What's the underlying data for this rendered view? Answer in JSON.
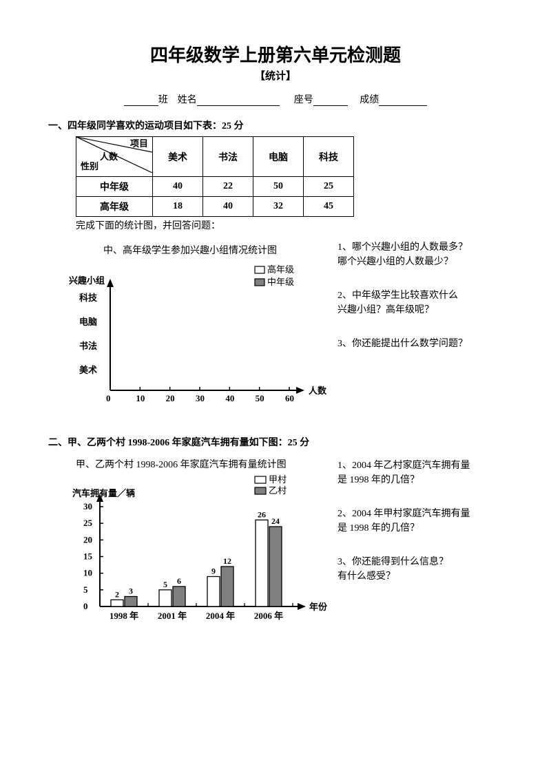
{
  "header": {
    "title": "四年级数学上册第六单元检测题",
    "subtitle": "【统计】",
    "class_label": "班",
    "name_label": "姓名",
    "seat_label": "座号",
    "score_label": "成绩"
  },
  "section1": {
    "heading": "一、四年级同学喜欢的运动项目如下表：25 分",
    "table": {
      "diag_top": "项目",
      "diag_mid": "人数",
      "diag_bottom": "性别",
      "columns": [
        "美术",
        "书法",
        "电脑",
        "科技"
      ],
      "rows": [
        {
          "label": "中年级",
          "values": [
            "40",
            "22",
            "50",
            "25"
          ]
        },
        {
          "label": "高年级",
          "values": [
            "18",
            "40",
            "32",
            "45"
          ]
        }
      ]
    },
    "under_table": "完成下面的统计图，并回答问题：",
    "chart": {
      "title": "中、高年级学生参加兴趣小组情况统计图",
      "y_label": "兴趣小组",
      "x_label": "人数",
      "y_categories": [
        "科技",
        "电脑",
        "书法",
        "美术"
      ],
      "x_ticks": [
        "0",
        "10",
        "20",
        "30",
        "40",
        "50",
        "60"
      ],
      "legend": [
        {
          "label": "高年级",
          "fill": "#ffffff",
          "stroke": "#000000"
        },
        {
          "label": "中年级",
          "fill": "#808080",
          "stroke": "#000000"
        }
      ],
      "axis_color": "#000000"
    },
    "questions": [
      "1、哪个兴趣小组的人数最多？\n哪个兴趣小组的人数最少？",
      "2、中年级学生比较喜欢什么\n兴趣小组？高年级呢？",
      "3、你还能提出什么数学问题？"
    ]
  },
  "section2": {
    "heading": "二、甲、乙两个村 1998-2006 年家庭汽车拥有量如下图：25 分",
    "chart": {
      "title": "甲、乙两个村 1998-2006 年家庭汽车拥有量统计图",
      "y_label": "汽车拥有量／辆",
      "x_label": "年份",
      "y_ticks": [
        "0",
        "5",
        "10",
        "15",
        "20",
        "25",
        "30"
      ],
      "y_max": 30,
      "x_categories": [
        "1998 年",
        "2001 年",
        "2004 年",
        "2006 年"
      ],
      "legend": [
        {
          "label": "甲村",
          "fill": "#ffffff",
          "stroke": "#000000"
        },
        {
          "label": "乙村",
          "fill": "#808080",
          "stroke": "#000000"
        }
      ],
      "series": {
        "jia": [
          2,
          5,
          9,
          26
        ],
        "yi": [
          3,
          6,
          12,
          24
        ]
      },
      "bar_colors": {
        "jia": "#ffffff",
        "yi": "#808080"
      },
      "axis_color": "#000000"
    },
    "questions": [
      "1、2004 年乙村家庭汽车拥有量\n是 1998 年的几倍？",
      "2、2004 年甲村家庭汽车拥有量\n是 1998 年的几倍？",
      "3、你还能得到什么信息？\n有什么感受？"
    ]
  }
}
